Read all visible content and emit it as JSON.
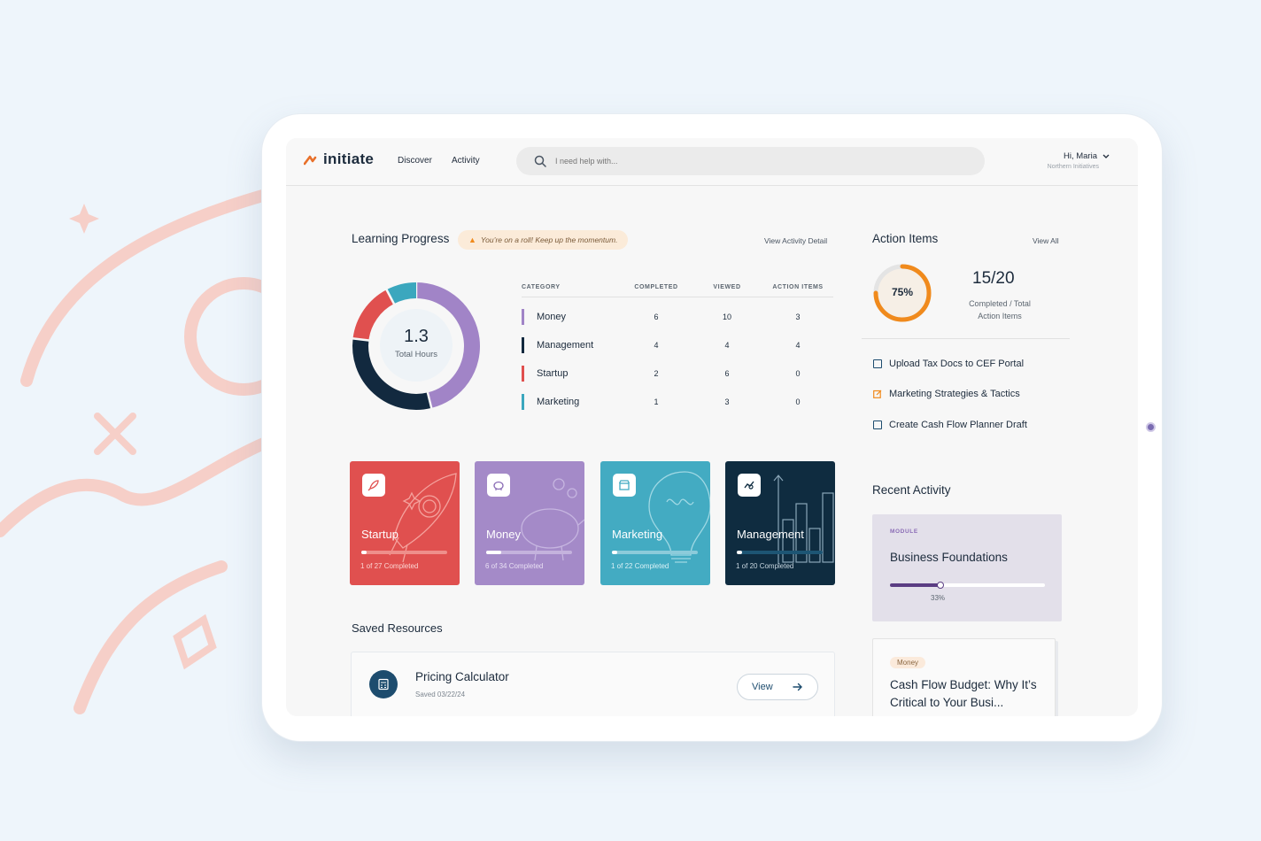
{
  "header": {
    "brand": "initiate",
    "nav": [
      {
        "label": "Discover"
      },
      {
        "label": "Activity"
      }
    ],
    "search_placeholder": "I need help with...",
    "user": {
      "greeting": "Hi, Maria",
      "org": "Northern Initiatives"
    }
  },
  "learning_progress": {
    "title": "Learning Progress",
    "streak": "You’re on a roll! Keep up the momentum.",
    "link": "View Activity Detail",
    "total_hours": "1.3",
    "total_hours_label": "Total Hours",
    "columns": [
      "CATEGORY",
      "COMPLETED",
      "VIEWED",
      "ACTION ITEMS"
    ],
    "rows": [
      {
        "category": "Money",
        "completed": "6",
        "viewed": "10",
        "action_items": "3",
        "color": "#a184c7"
      },
      {
        "category": "Management",
        "completed": "4",
        "viewed": "4",
        "action_items": "4",
        "color": "#12293f"
      },
      {
        "category": "Startup",
        "completed": "2",
        "viewed": "6",
        "action_items": "0",
        "color": "#e0504f"
      },
      {
        "category": "Marketing",
        "completed": "1",
        "viewed": "3",
        "action_items": "0",
        "color": "#3ba7be"
      }
    ]
  },
  "chart_data": {
    "type": "pie",
    "title": "",
    "categories": [
      "Money",
      "Management",
      "Startup",
      "Marketing"
    ],
    "values": [
      6,
      4,
      2,
      1
    ],
    "colors": [
      "#a184c7",
      "#12293f",
      "#e0504f",
      "#3ba7be"
    ]
  },
  "courses": [
    {
      "name": "Startup",
      "progress": "1 of 27 Completed",
      "fraction": 0.037,
      "bg": "#e0504f",
      "track": "#ee8f8b",
      "icon": "rocket-icon"
    },
    {
      "name": "Money",
      "progress": "6 of 34 Completed",
      "fraction": 0.176,
      "bg": "#a48ac8",
      "track": "#c4b2dd",
      "icon": "piggy-bank-icon"
    },
    {
      "name": "Marketing",
      "progress": "1 of 22 Completed",
      "fraction": 0.045,
      "bg": "#43abc2",
      "track": "#8ccbda",
      "icon": "storefront-icon"
    },
    {
      "name": "Management",
      "progress": "1 of 20 Completed",
      "fraction": 0.05,
      "bg": "#0f2c40",
      "track": "#1d5574",
      "icon": "chart-icon"
    }
  ],
  "saved_resources": {
    "title": "Saved Resources",
    "items": [
      {
        "name": "Pricing Calculator",
        "saved": "Saved 03/22/24",
        "action": "View",
        "icon": "calculator-icon"
      }
    ]
  },
  "action_items": {
    "title": "Action Items",
    "link": "View All",
    "percent": "75%",
    "fraction": 0.75,
    "score": "15/20",
    "score_label": "Completed / Total Action Items",
    "tasks": [
      {
        "label": "Upload Tax Docs to CEF Portal",
        "icon": "checkbox-icon"
      },
      {
        "label": "Marketing Strategies & Tactics",
        "icon": "edit-icon"
      },
      {
        "label": "Create Cash Flow Planner Draft",
        "icon": "checkbox-icon"
      }
    ]
  },
  "recent_activity": {
    "title": "Recent Activity",
    "module": {
      "tag": "MODULE",
      "name": "Business Foundations",
      "percent": "33%"
    },
    "article": {
      "tag": "Money",
      "title": "Cash Flow Budget: Why It’s Critical to Your Busi..."
    }
  },
  "colors": {
    "accent_orange": "#f08a1c",
    "navy": "#1d4c6e"
  }
}
